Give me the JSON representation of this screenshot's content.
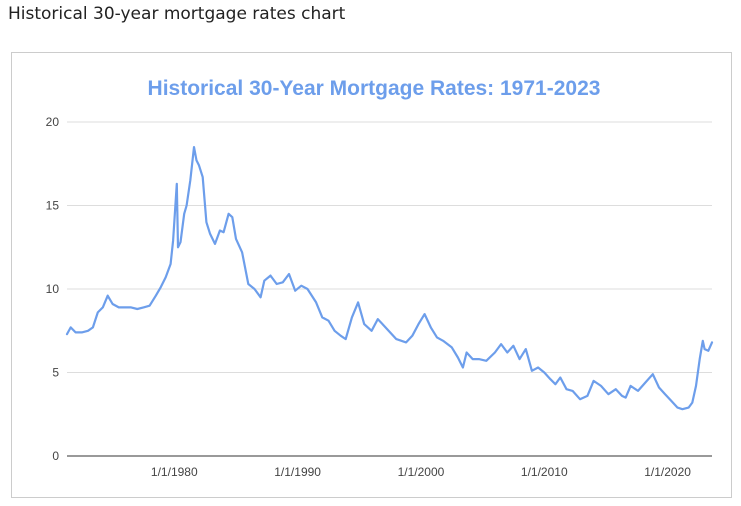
{
  "page": {
    "heading": "Historical 30-year mortgage rates chart"
  },
  "colors": {
    "series": "#6d9eeb",
    "title": "#6d9eeb",
    "grid": "#dddddd",
    "baseline": "#333333",
    "tick_text": "#444444"
  },
  "chart_data": {
    "type": "line",
    "title": "Historical 30-Year Mortgage Rates: 1971-2023",
    "xlabel": "",
    "ylabel": "",
    "xlim": [
      1971.3,
      2023.6
    ],
    "ylim": [
      0,
      20
    ],
    "grid": true,
    "legend": "none",
    "y_ticks": [
      {
        "value": 0,
        "label": "0"
      },
      {
        "value": 5,
        "label": "5"
      },
      {
        "value": 10,
        "label": "10"
      },
      {
        "value": 15,
        "label": "15"
      },
      {
        "value": 20,
        "label": "20"
      }
    ],
    "x_ticks": [
      {
        "value": 1980,
        "label": "1/1/1980"
      },
      {
        "value": 1990,
        "label": "1/1/1990"
      },
      {
        "value": 2000,
        "label": "1/1/2000"
      },
      {
        "value": 2010,
        "label": "1/1/2010"
      },
      {
        "value": 2020,
        "label": "1/1/2020"
      }
    ],
    "series": [
      {
        "x": [
          1971.3,
          1971.6,
          1972.0,
          1972.5,
          1973.0,
          1973.4,
          1973.8,
          1974.2,
          1974.6,
          1975.0,
          1975.5,
          1976.0,
          1976.5,
          1977.0,
          1977.5,
          1978.0,
          1978.5,
          1978.9,
          1979.3,
          1979.7,
          1979.9,
          1980.2,
          1980.3,
          1980.5,
          1980.8,
          1981.0,
          1981.3,
          1981.6,
          1981.8,
          1982.0,
          1982.3,
          1982.6,
          1982.9,
          1983.3,
          1983.7,
          1984.0,
          1984.4,
          1984.7,
          1985.0,
          1985.5,
          1986.0,
          1986.5,
          1987.0,
          1987.3,
          1987.8,
          1988.3,
          1988.8,
          1989.3,
          1989.8,
          1990.3,
          1990.8,
          1991.5,
          1992.0,
          1992.5,
          1993.0,
          1993.5,
          1993.9,
          1994.4,
          1994.9,
          1995.4,
          1996.0,
          1996.5,
          1997.0,
          1997.5,
          1998.0,
          1998.8,
          1999.3,
          1999.8,
          2000.3,
          2000.8,
          2001.3,
          2001.8,
          2002.5,
          2003.0,
          2003.4,
          2003.7,
          2004.2,
          2004.7,
          2005.3,
          2006.0,
          2006.5,
          2007.0,
          2007.5,
          2008.0,
          2008.5,
          2009.0,
          2009.5,
          2010.0,
          2010.5,
          2010.9,
          2011.3,
          2011.8,
          2012.3,
          2012.9,
          2013.5,
          2014.0,
          2014.6,
          2015.2,
          2015.8,
          2016.3,
          2016.6,
          2017.0,
          2017.6,
          2018.2,
          2018.8,
          2019.3,
          2019.8,
          2020.3,
          2020.8,
          2021.2,
          2021.7,
          2022.0,
          2022.3,
          2022.6,
          2022.85,
          2023.0,
          2023.3,
          2023.6
        ],
        "y": [
          7.3,
          7.7,
          7.4,
          7.4,
          7.5,
          7.7,
          8.6,
          8.9,
          9.6,
          9.1,
          8.9,
          8.9,
          8.9,
          8.8,
          8.9,
          9.0,
          9.6,
          10.1,
          10.7,
          11.5,
          12.9,
          16.3,
          12.5,
          12.8,
          14.5,
          15.0,
          16.5,
          18.5,
          17.7,
          17.4,
          16.7,
          14.0,
          13.3,
          12.7,
          13.5,
          13.4,
          14.5,
          14.3,
          13.0,
          12.2,
          10.3,
          10.0,
          9.5,
          10.5,
          10.8,
          10.3,
          10.4,
          10.9,
          9.9,
          10.2,
          10.0,
          9.2,
          8.3,
          8.1,
          7.5,
          7.2,
          7.0,
          8.3,
          9.2,
          7.9,
          7.5,
          8.2,
          7.8,
          7.4,
          7.0,
          6.8,
          7.2,
          7.9,
          8.5,
          7.7,
          7.1,
          6.9,
          6.5,
          5.9,
          5.3,
          6.2,
          5.8,
          5.8,
          5.7,
          6.2,
          6.7,
          6.2,
          6.6,
          5.8,
          6.4,
          5.1,
          5.3,
          5.0,
          4.6,
          4.3,
          4.7,
          4.0,
          3.9,
          3.4,
          3.6,
          4.5,
          4.2,
          3.7,
          4.0,
          3.6,
          3.5,
          4.2,
          3.9,
          4.4,
          4.9,
          4.1,
          3.7,
          3.3,
          2.9,
          2.8,
          2.9,
          3.2,
          4.2,
          5.8,
          6.9,
          6.4,
          6.3,
          6.8
        ]
      }
    ]
  }
}
